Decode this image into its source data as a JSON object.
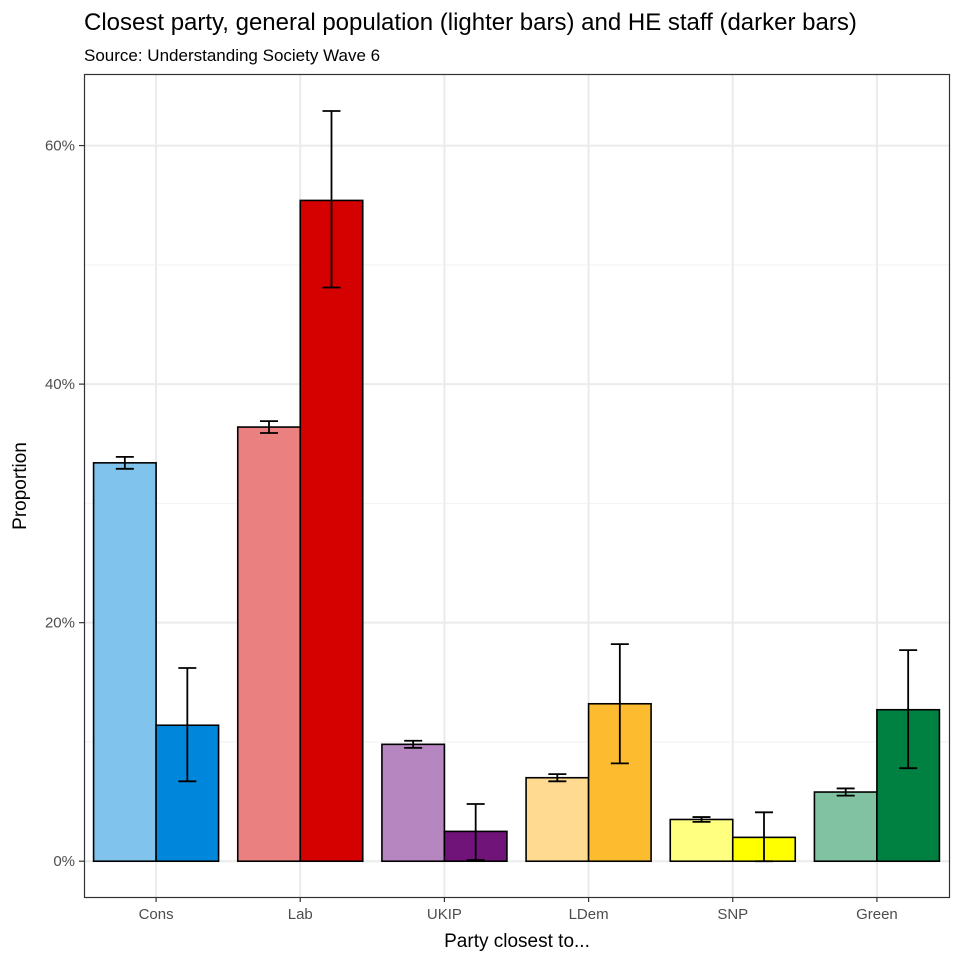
{
  "chart_data": {
    "type": "bar",
    "title": "Closest party, general population (lighter bars) and HE staff (darker bars)",
    "subtitle": "Source: Understanding Society Wave 6",
    "xlabel": "Party closest to...",
    "ylabel": "Proportion",
    "ylim": [
      -3,
      66
    ],
    "yticks": [
      0,
      20,
      40,
      60
    ],
    "ytick_labels": [
      "0%",
      "20%",
      "40%",
      "60%"
    ],
    "grid": true,
    "categories": [
      "Cons",
      "Lab",
      "UKIP",
      "LDem",
      "SNP",
      "Green"
    ],
    "series": [
      {
        "values": [
          33.4,
          36.4,
          9.8,
          7.0,
          3.5,
          5.8
        ],
        "lower": [
          32.9,
          35.9,
          9.5,
          6.7,
          3.3,
          5.5
        ],
        "upper": [
          33.9,
          36.9,
          10.1,
          7.3,
          3.7,
          6.1
        ],
        "colors": [
          "#80c3ec",
          "#ea8080",
          "#b586bf",
          "#ffda90",
          "#ffff80",
          "#80c2a2"
        ]
      },
      {
        "values": [
          11.4,
          55.4,
          2.5,
          13.2,
          2.0,
          12.7
        ],
        "lower": [
          6.7,
          48.1,
          0.1,
          8.2,
          0.0,
          7.8
        ],
        "upper": [
          16.2,
          62.9,
          4.8,
          18.2,
          4.1,
          17.7
        ],
        "colors": [
          "#0087dc",
          "#d50000",
          "#70147a",
          "#fdbb30",
          "#ffff00",
          "#008142"
        ]
      }
    ]
  }
}
